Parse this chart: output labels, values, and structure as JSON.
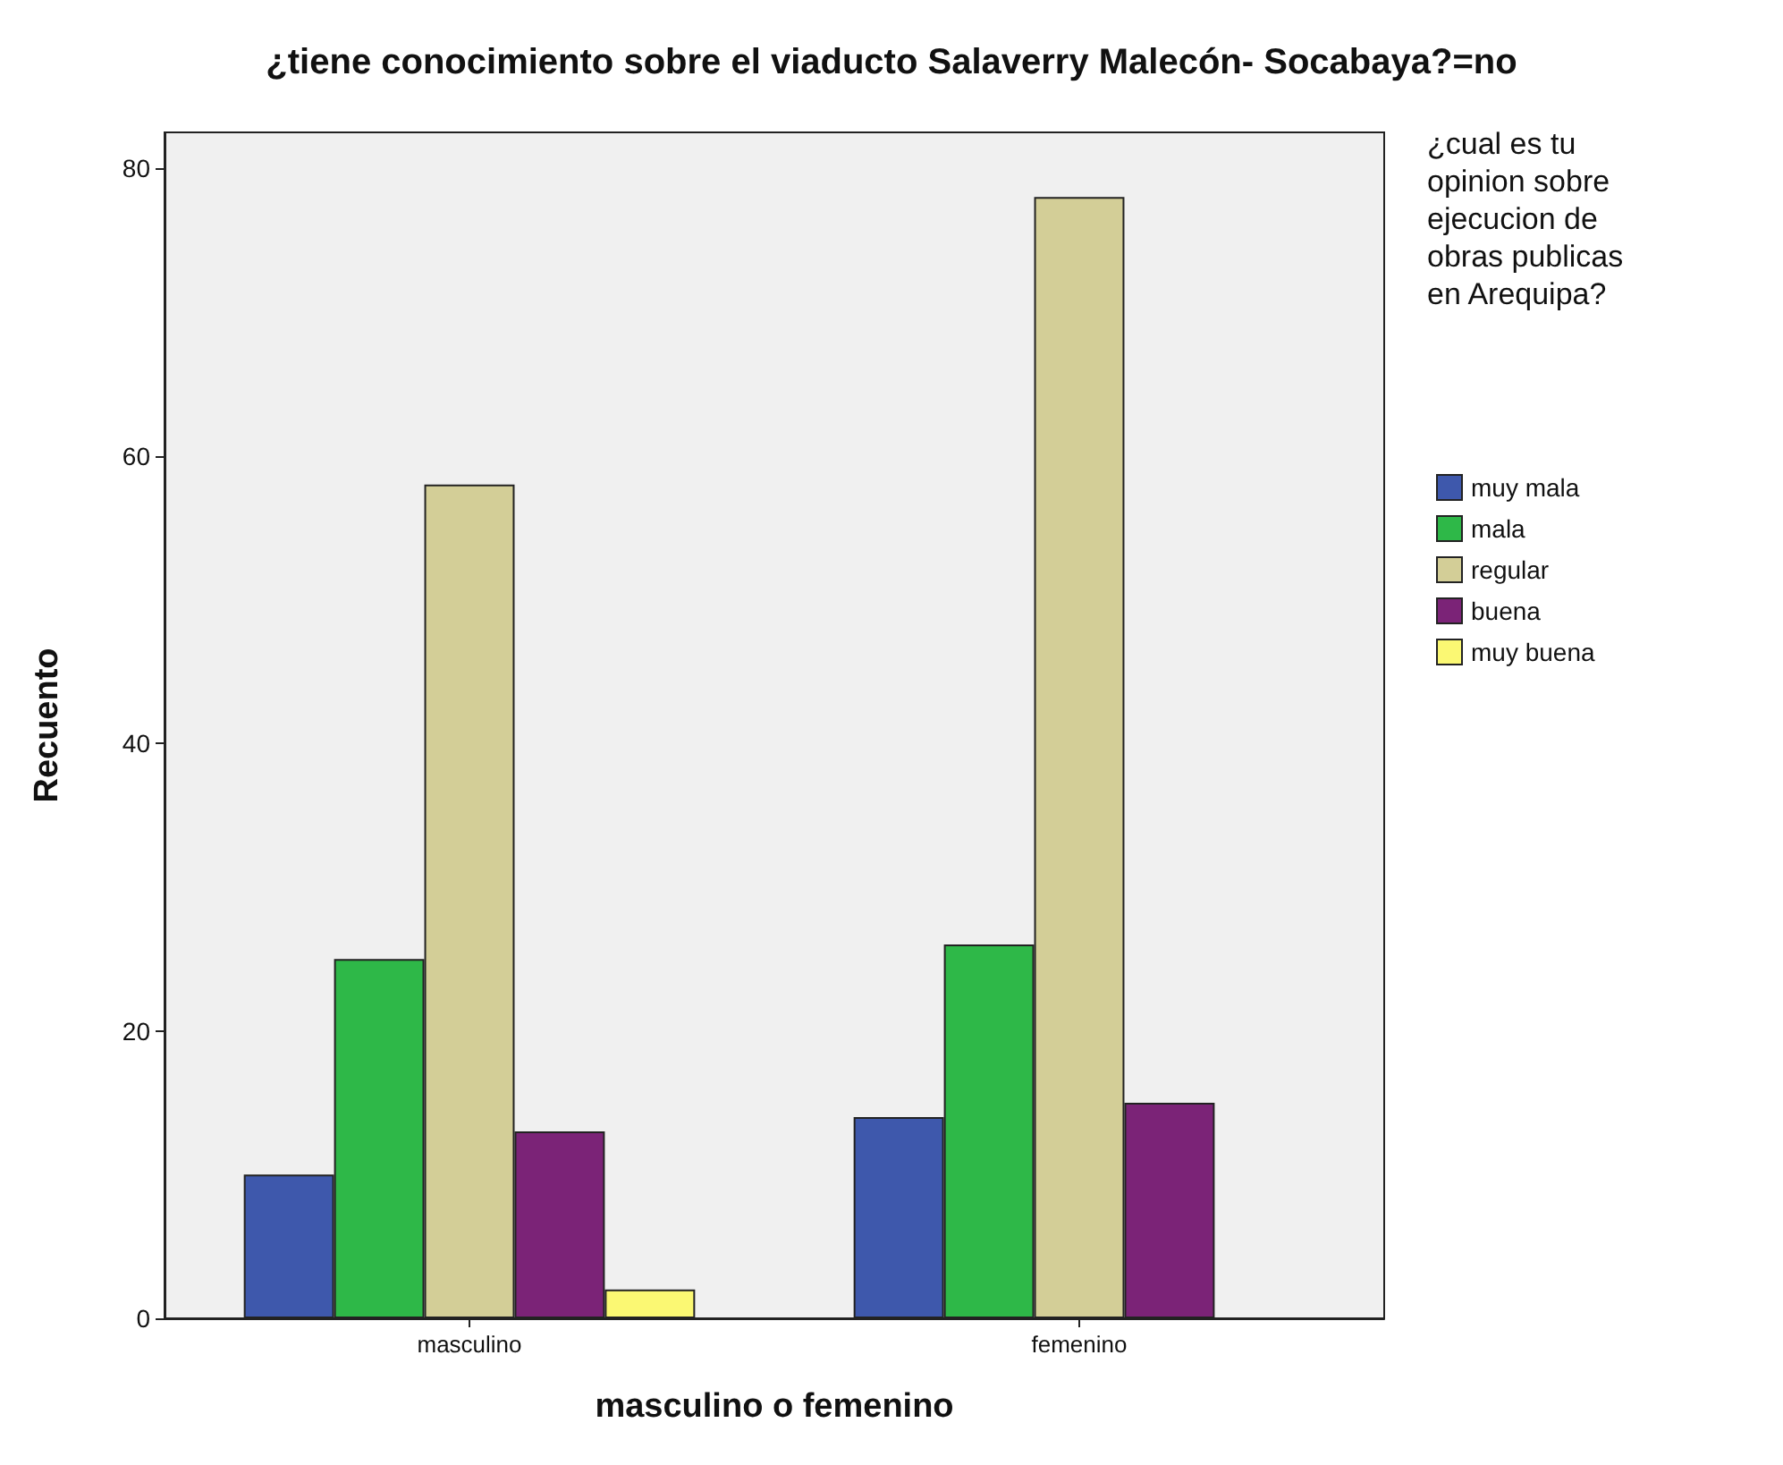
{
  "chart_data": {
    "type": "bar",
    "title": "¿tiene conocimiento sobre el viaducto Salaverry Malecón- Socabaya?=no",
    "xlabel": "masculino o femenino",
    "ylabel": "Recuento",
    "legend_title": "¿cual es tu opinion sobre ejecucion de obras publicas en Arequipa?",
    "categories": [
      "masculino",
      "femenino"
    ],
    "series": [
      {
        "name": "muy mala",
        "color": "#3e58ac",
        "values": [
          10,
          14
        ]
      },
      {
        "name": "mala",
        "color": "#2eb848",
        "values": [
          25,
          26
        ]
      },
      {
        "name": "regular",
        "color": "#d3ce97",
        "values": [
          58,
          78
        ]
      },
      {
        "name": "buena",
        "color": "#7b2377",
        "values": [
          13,
          15
        ]
      },
      {
        "name": "muy buena",
        "color": "#fbf873",
        "values": [
          2,
          null
        ]
      }
    ],
    "ylim": [
      0,
      82.5
    ],
    "yticks": [
      0,
      20,
      40,
      60,
      80
    ],
    "grid": false,
    "legend": "right"
  }
}
